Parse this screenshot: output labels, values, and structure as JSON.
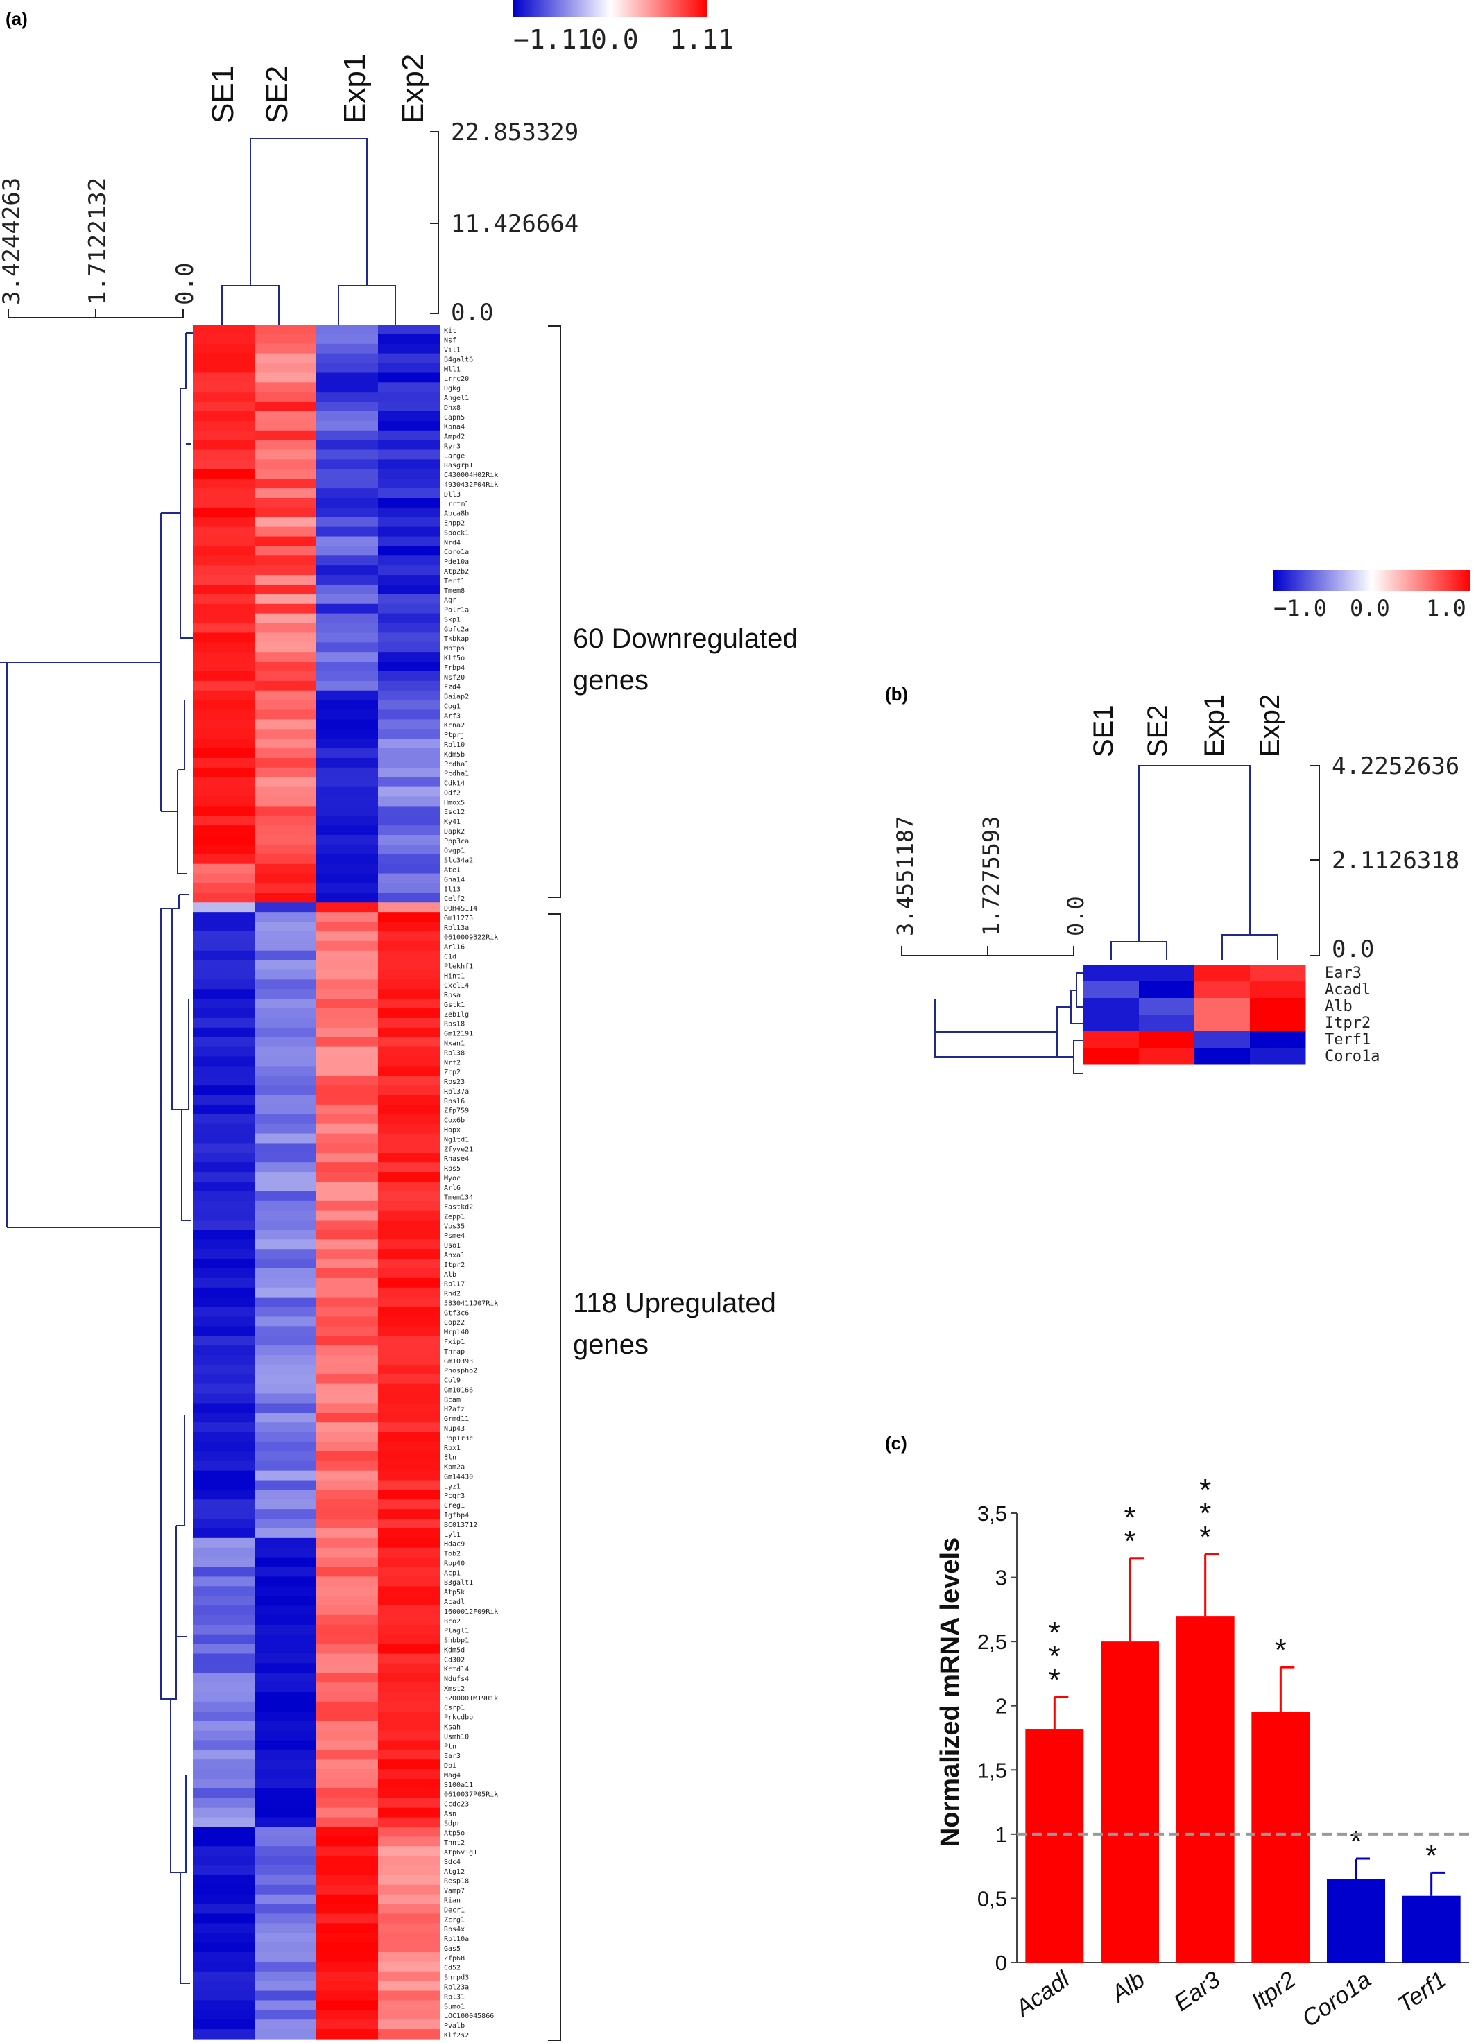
{
  "panels": {
    "a": "(a)",
    "b": "(b)",
    "c": "(c)"
  },
  "panel_a": {
    "colorbar": {
      "min_label": "−1.11",
      "mid_label": "0.0",
      "max_label": "1.11"
    },
    "samples": [
      "SE1",
      "SE2",
      "Exp1",
      "Exp2"
    ],
    "col_dendro_scale": [
      "22.853329",
      "11.426664",
      "0.0"
    ],
    "row_dendro_scale": [
      "3.4244263",
      "1.7122132",
      "0.0"
    ],
    "down_label_line1": "60 Downregulated",
    "down_label_line2": "genes",
    "up_label_line1": "118 Upregulated",
    "up_label_line2": "genes"
  },
  "panel_b": {
    "colorbar": {
      "min_label": "−1.0",
      "mid_label": "0.0",
      "max_label": "1.0"
    },
    "samples": [
      "SE1",
      "SE2",
      "Exp1",
      "Exp2"
    ],
    "col_dendro_scale": [
      "4.2252636",
      "2.1126318",
      "0.0"
    ],
    "row_dendro_scale": [
      "3.4551187",
      "1.7275593",
      "0.0"
    ],
    "genes": [
      "Ear3",
      "Acadl",
      "Alb",
      "Itpr2",
      "Terf1",
      "Coro1a"
    ]
  },
  "colors": {
    "red": "#ff0000",
    "blue": "#0000cc",
    "dendrogram": "#1f2a8c"
  },
  "chart_data": [
    {
      "type": "heatmap",
      "panel": "a",
      "columns": [
        "SE1",
        "SE2",
        "Exp1",
        "Exp2"
      ],
      "value_range": [
        -1.11,
        1.11
      ],
      "row_groups": [
        {
          "label": "60 Downregulated genes",
          "count": 60
        },
        {
          "label": "118 Upregulated genes",
          "count": 118
        }
      ],
      "gene_labels_down": [
        "Kit",
        "Nsf",
        "Vil1",
        "B4galt6",
        "Mll1",
        "Lrrc20",
        "Dgkg",
        "Angel1",
        "Dhx8",
        "Capn5",
        "Kpna4",
        "Ampd2",
        "Ryr3",
        "Large",
        "Rasgrp1",
        "C430004H02Rik",
        "4930432F04Rik",
        "Dll3",
        "Lrrtm1",
        "Abca8b",
        "Enpp2",
        "Spock1",
        "Nrd4",
        "Coro1a",
        "Pde10a",
        "Atp2b2",
        "Terf1",
        "Tmem8",
        "Aqr",
        "Polr1a",
        "Skp1",
        "Gbfc2a",
        "Tkbkap",
        "Mbtps1",
        "Klf5o",
        "Frbp4",
        "Nsf20",
        "Fzd4",
        "Baiap2",
        "Cog1",
        "Arf3",
        "Kcna2",
        "Ptprj",
        "Rpl10",
        "Kdm5b",
        "Pcdha1",
        "Pcdha1",
        "Cdk14",
        "Odf2",
        "Hmox5",
        "Esc12",
        "Ky41",
        "Dapk2",
        "Ppp3ca",
        "Ovgp1",
        "Slc34a2",
        "Ate1",
        "Gna14",
        "Il13",
        "Celf2"
      ],
      "gene_labels_up": [
        "D0H4S114",
        "Gm11275",
        "Rpl13a",
        "0610009B22Rik",
        "Arl16",
        "C1d",
        "Plekhf1",
        "Hint1",
        "Cxcl14",
        "Rpsa",
        "Gstk1",
        "Zeb1lg",
        "Rps18",
        "Gm12191",
        "Nxan1",
        "Rpl38",
        "Nrf2",
        "Zcp2",
        "Rps23",
        "Rpl37a",
        "Rps16",
        "Zfp759",
        "Cox6b",
        "Hopx",
        "Ng1td1",
        "Zfyve21",
        "Rnase4",
        "Rps5",
        "Myoc",
        "Arl6",
        "Tmem134",
        "Fastkd2",
        "Zepp1",
        "Vps35",
        "Psme4",
        "Uso1",
        "Anxa1",
        "Itpr2",
        "Alb",
        "Rpl17",
        "Rnd2",
        "5830411J07Rik",
        "Gtf3c6",
        "Copz2",
        "Mrpl40",
        "Fxip1",
        "Thrap",
        "Gm10393",
        "Phospho2",
        "Col9",
        "Gm10166",
        "Bcam",
        "H2afz",
        "Grmd11",
        "Nup43",
        "Ppp1r3c",
        "Rbx1",
        "Eln",
        "Kpm2a",
        "Gm14430",
        "Lyz1",
        "Pcgr3",
        "Creg1",
        "Igfbp4",
        "BC013712",
        "Lyl1",
        "Hdac9",
        "Tob2",
        "Rpp40",
        "Acp1",
        "B3galt1",
        "Atp5k",
        "Acadl",
        "1600012F09Rik",
        "Bco2",
        "Plagl1",
        "Shbbp1",
        "Kdm5d",
        "Cd302",
        "Kctd14",
        "Ndufs4",
        "Xmst2",
        "3200001M19Rik",
        "Csrp1",
        "Prkcdbp",
        "Ksah",
        "Usmh10",
        "Ptn",
        "Ear3",
        "Dbi",
        "Mag4",
        "S100a11",
        "0610037P05Rik",
        "Ccdc23",
        "Asn",
        "Sdpr",
        "Atp5o",
        "Tnnt2",
        "Atp6v1g1",
        "Sdc4",
        "Atg12",
        "Resp18",
        "Vamp7",
        "Rian",
        "Decr1",
        "Zcrg1",
        "Rps4x",
        "Rpl10a",
        "Gas5",
        "Zfp68",
        "Cd52",
        "Snrpd3",
        "Rpl23a",
        "Rpl31",
        "Sumo1",
        "LOC100045866",
        "Pvalb",
        "Klf2s2"
      ]
    },
    {
      "type": "heatmap",
      "panel": "b",
      "columns": [
        "SE1",
        "SE2",
        "Exp1",
        "Exp2"
      ],
      "value_range": [
        -1.0,
        1.0
      ],
      "rows": [
        "Ear3",
        "Acadl",
        "Alb",
        "Itpr2",
        "Terf1",
        "Coro1a"
      ],
      "values": [
        [
          -0.9,
          -0.9,
          0.9,
          0.8
        ],
        [
          -0.7,
          -1.0,
          0.8,
          0.9
        ],
        [
          -0.9,
          -0.7,
          0.6,
          1.0
        ],
        [
          -0.9,
          -0.8,
          0.6,
          1.0
        ],
        [
          0.9,
          1.0,
          -0.8,
          -1.0
        ],
        [
          1.0,
          0.9,
          -1.0,
          -0.9
        ]
      ]
    },
    {
      "type": "bar",
      "panel": "c",
      "categories": [
        "Acadl",
        "Alb",
        "Ear3",
        "Itpr2",
        "Coro1a",
        "Terf1"
      ],
      "values": [
        1.82,
        2.5,
        2.7,
        1.95,
        0.65,
        0.52
      ],
      "errors": [
        0.25,
        0.65,
        0.48,
        0.35,
        0.16,
        0.18
      ],
      "significance": [
        "***",
        "**",
        "***",
        "*",
        "*",
        "*"
      ],
      "bar_colors": [
        "#ff0000",
        "#ff0000",
        "#ff0000",
        "#ff0000",
        "#0000cc",
        "#0000cc"
      ],
      "ylabel": "Normalized mRNA levels",
      "ylim": [
        0,
        3.5
      ],
      "yticks": [
        "0",
        "0,5",
        "1",
        "1,5",
        "2",
        "2,5",
        "3",
        "3,5"
      ],
      "reference_line": 1
    }
  ]
}
